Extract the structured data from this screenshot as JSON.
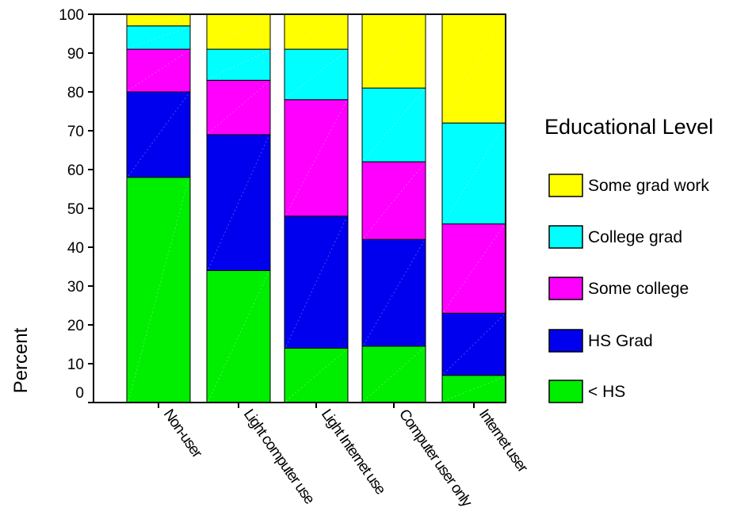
{
  "chart_data": {
    "type": "bar",
    "stacked": true,
    "ylabel": "Percent",
    "xlabel": "",
    "ylim": [
      0,
      100
    ],
    "yticks": [
      "0",
      "10",
      "20",
      "30",
      "40",
      "50",
      "60",
      "70",
      "80",
      "90",
      "100"
    ],
    "categories": [
      "Non-user",
      "Light computer use",
      "Light Internet use",
      "Computer user only",
      "Internet user"
    ],
    "legend_title": "Educational Level",
    "legend_position": "right",
    "series": [
      {
        "name": "< HS",
        "color": "#00ee00",
        "values": [
          58,
          34,
          14,
          14.5,
          7
        ]
      },
      {
        "name": "HS Grad",
        "color": "#0000ee",
        "values": [
          22,
          35,
          34,
          27.5,
          16
        ]
      },
      {
        "name": "Some college",
        "color": "#ff00ff",
        "values": [
          11,
          14,
          30,
          20,
          23
        ]
      },
      {
        "name": "College grad",
        "color": "#00ffff",
        "values": [
          6,
          8,
          13,
          19,
          26
        ]
      },
      {
        "name": "Some grad work",
        "color": "#ffff00",
        "values": [
          3,
          9,
          9,
          19,
          28
        ]
      }
    ]
  }
}
